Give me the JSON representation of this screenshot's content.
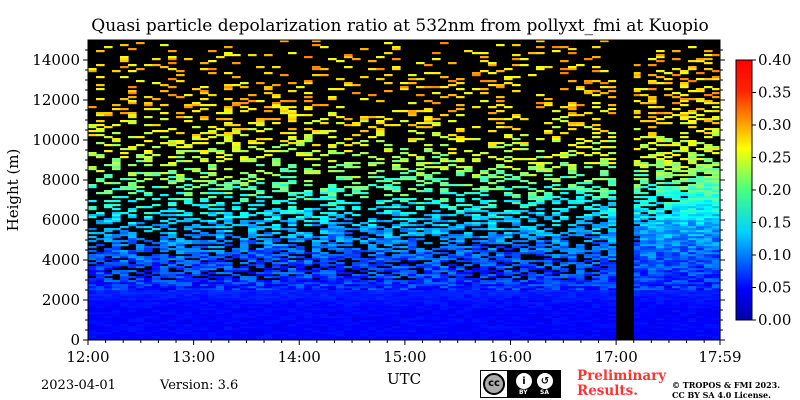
{
  "chart_data": {
    "type": "heatmap",
    "title": "Quasi particle depolarization ratio at 532nm from pollyxt_fmi at Kuopio",
    "xlabel": "UTC",
    "ylabel": "Height (m)",
    "x_ticks": [
      "12:00",
      "13:00",
      "14:00",
      "15:00",
      "16:00",
      "17:00",
      "17:59"
    ],
    "x_range": [
      "12:00",
      "17:59"
    ],
    "y_ticks": [
      0,
      2000,
      4000,
      6000,
      8000,
      10000,
      12000,
      14000
    ],
    "ylim": [
      0,
      15000
    ],
    "colorbar": {
      "ticks": [
        "0.00",
        "0.05",
        "0.10",
        "0.15",
        "0.20",
        "0.25",
        "0.30",
        "0.35",
        "0.40"
      ],
      "range": [
        0.0,
        0.4
      ],
      "colormap": "jet"
    },
    "data_gap": {
      "start": "17:00",
      "end": "17:10"
    },
    "profile": [
      {
        "height": 0,
        "value": 0.05
      },
      {
        "height": 1500,
        "value": 0.05
      },
      {
        "height": 3000,
        "value": 0.07
      },
      {
        "height": 4500,
        "value": 0.09
      },
      {
        "height": 6000,
        "value": 0.13
      },
      {
        "height": 7500,
        "value": 0.18
      },
      {
        "height": 9000,
        "value": 0.22
      },
      {
        "height": 10500,
        "value": 0.25
      },
      {
        "height": 12000,
        "value": 0.27
      },
      {
        "height": 14000,
        "value": 0.27
      }
    ]
  },
  "footer": {
    "date": "2023-04-01",
    "version": "Version: 3.6",
    "preliminary_line1": "Preliminary",
    "preliminary_line2": "Results.",
    "copyright_line1": "© TROPOS & FMI 2023.",
    "copyright_line2": "CC BY SA 4.0 License.",
    "license_badge": {
      "cc": "cc",
      "by": "BY",
      "sa": "SA"
    }
  }
}
